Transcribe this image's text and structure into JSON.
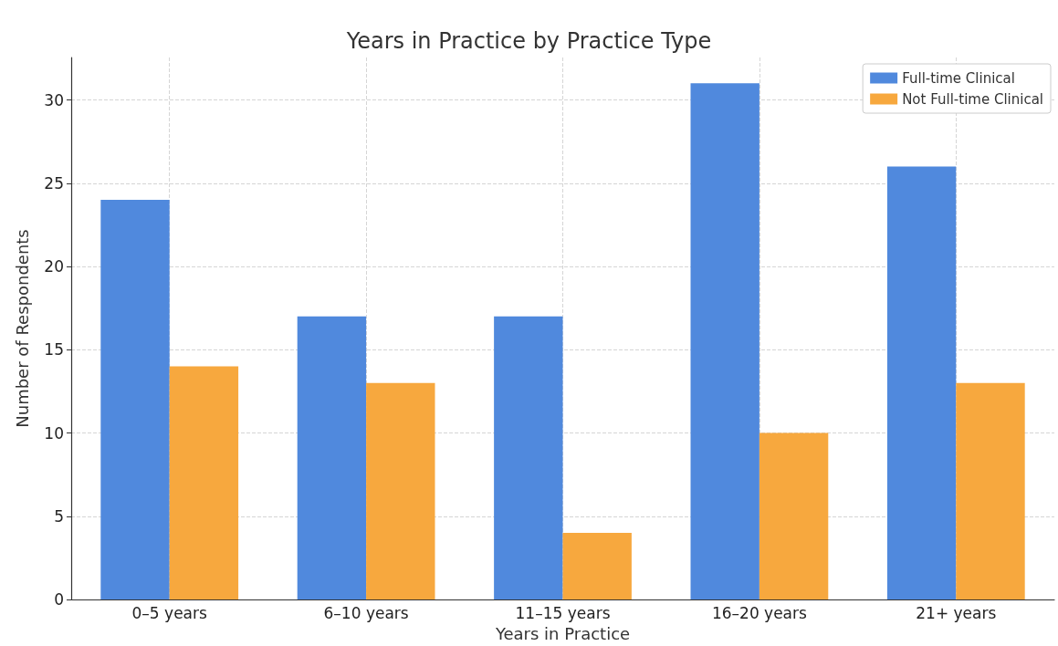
{
  "chart_data": {
    "type": "bar",
    "title": "Years in Practice by Practice Type",
    "xlabel": "Years in Practice",
    "ylabel": "Number of Respondents",
    "categories": [
      "0–5 years",
      "6–10 years",
      "11–15 years",
      "16–20 years",
      "21+ years"
    ],
    "series": [
      {
        "name": "Full-time Clinical",
        "color": "#5089dd",
        "values": [
          24,
          17,
          17,
          31,
          26
        ]
      },
      {
        "name": "Not Full-time Clinical",
        "color": "#f7a83e",
        "values": [
          14,
          13,
          4,
          10,
          13
        ]
      }
    ],
    "ylim": [
      0,
      32.55
    ],
    "yticks": [
      0,
      5,
      10,
      15,
      20,
      25,
      30
    ],
    "grid": true,
    "legend": "top right"
  }
}
